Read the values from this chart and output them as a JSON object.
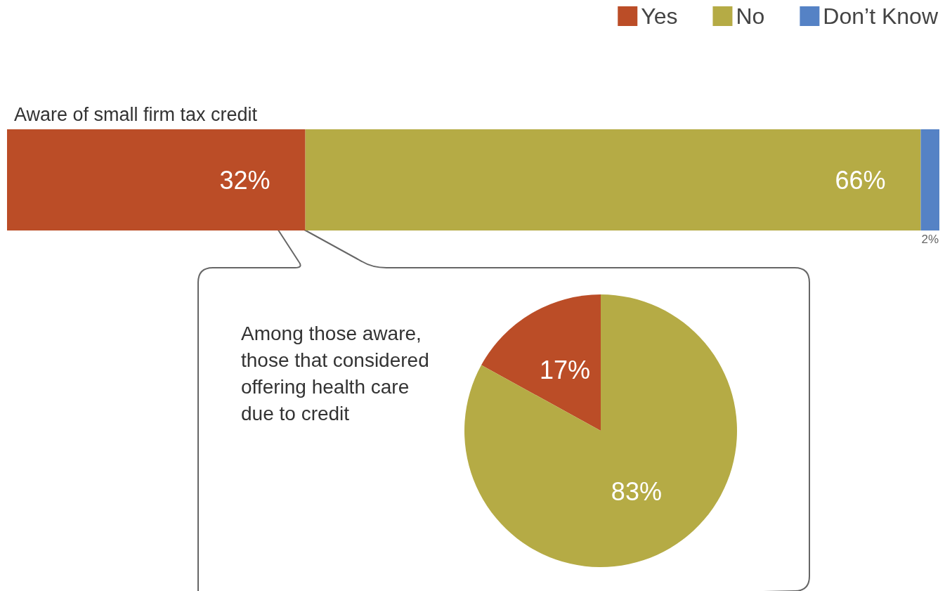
{
  "chart_data": [
    {
      "type": "bar",
      "orientation": "horizontal",
      "stacked": true,
      "legend": "top right",
      "categories": [
        "Aware of small firm tax credit"
      ],
      "series": [
        {
          "name": "Yes",
          "color": "#bb4d27",
          "values": [
            32
          ],
          "value_labels": [
            "32%"
          ]
        },
        {
          "name": "No",
          "color": "#b5ab45",
          "values": [
            66
          ],
          "value_labels": [
            "66%"
          ]
        },
        {
          "name": "Don’t Know",
          "color": "#5582c5",
          "values": [
            2
          ],
          "value_labels": [
            "2%"
          ]
        }
      ]
    },
    {
      "type": "pie",
      "title": "Among those aware,\nthose that considered\noffering health care\ndue to credit",
      "categories": [
        null,
        null
      ],
      "values": [
        17,
        83
      ],
      "colors": [
        "#bb4d27",
        "#b5ab45"
      ],
      "value_labels": [
        "17%",
        "83%"
      ]
    }
  ]
}
